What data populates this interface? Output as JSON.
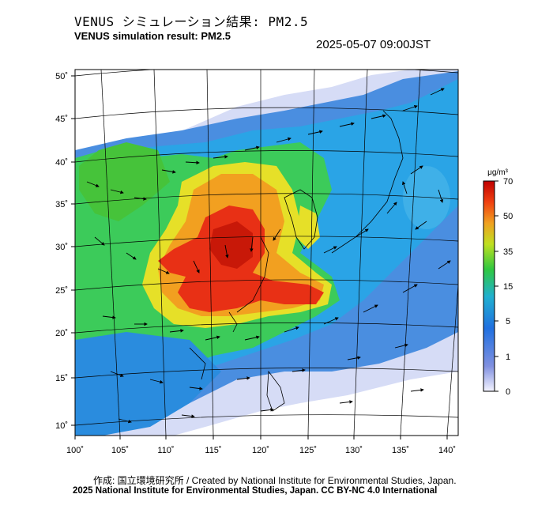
{
  "title_jp": "VENUS シミュレーション結果: PM2.5",
  "title_en": "VENUS simulation result: PM2.5",
  "timestamp": "2025-05-07 09:00JST",
  "lat_labels": [
    "50˚",
    "45˚",
    "40˚",
    "35˚",
    "30˚",
    "25˚",
    "20˚",
    "15˚",
    "10˚"
  ],
  "lon_labels": [
    "100˚",
    "105˚",
    "110˚",
    "115˚",
    "120˚",
    "125˚",
    "130˚",
    "135˚",
    "140˚"
  ],
  "colorbar": {
    "unit": "μg/m³",
    "tick_labels": [
      "70",
      "50",
      "35",
      "15",
      "5",
      "1",
      "0"
    ],
    "colors": [
      "#d0d0f0",
      "#4060d0",
      "#20a0e0",
      "#40d090",
      "#40c020",
      "#f0e020",
      "#f08020",
      "#e02010",
      "#a00000"
    ]
  },
  "credit_line1": "作成: 国立環境研究所 / Created by National Institute for Environmental Studies, Japan.",
  "credit_line2": "2025 National Institute for Environmental Studies, Japan. CC BY-NC 4.0 International"
}
